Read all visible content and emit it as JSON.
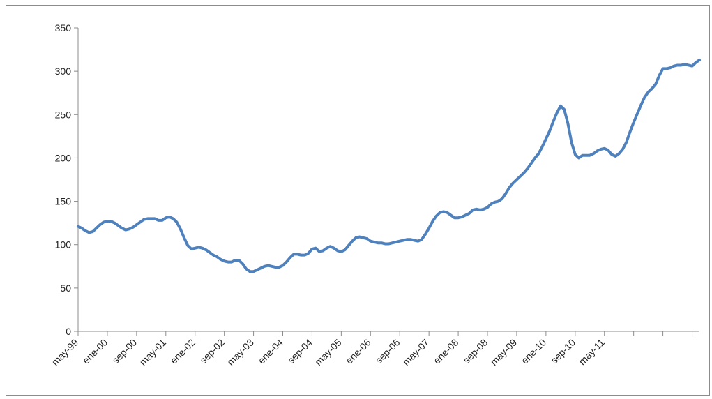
{
  "chart_data": {
    "type": "line",
    "title": "",
    "xlabel": "",
    "ylabel": "",
    "ylim": [
      0,
      350
    ],
    "yticks": [
      0,
      50,
      100,
      150,
      200,
      250,
      300,
      350
    ],
    "x_tick_labels": [
      "may-99",
      "ene-00",
      "sep-00",
      "may-01",
      "ene-02",
      "sep-02",
      "may-03",
      "ene-04",
      "sep-04",
      "may-05",
      "ene-06",
      "sep-06",
      "may-07",
      "ene-08",
      "sep-08",
      "may-09",
      "ene-10",
      "sep-10",
      "may-11"
    ],
    "grid": false,
    "legend": "none",
    "line_color": "#4f81bd",
    "series": [
      {
        "x_start": "may-99",
        "x_interval": "month",
        "values": [
          121,
          119,
          116,
          114,
          115,
          119,
          123,
          126,
          127,
          127,
          125,
          122,
          119,
          117,
          118,
          120,
          123,
          126,
          129,
          130,
          130,
          130,
          128,
          128,
          131,
          132,
          130,
          126,
          118,
          108,
          99,
          95,
          96,
          97,
          96,
          94,
          91,
          88,
          86,
          83,
          81,
          80,
          80,
          82,
          82,
          78,
          72,
          69,
          69,
          71,
          73,
          75,
          76,
          75,
          74,
          74,
          76,
          80,
          85,
          89,
          89,
          88,
          88,
          90,
          95,
          96,
          92,
          93,
          96,
          98,
          96,
          93,
          92,
          94,
          99,
          104,
          108,
          109,
          108,
          107,
          104,
          103,
          102,
          102,
          101,
          101,
          102,
          103,
          104,
          105,
          106,
          106,
          105,
          104,
          106,
          112,
          119,
          127,
          133,
          137,
          138,
          137,
          134,
          131,
          131,
          132,
          134,
          136,
          140,
          141,
          140,
          141,
          143,
          147,
          149,
          150,
          153,
          159,
          166,
          171,
          175,
          179,
          183,
          188,
          194,
          200,
          205,
          213,
          222,
          231,
          242,
          252,
          260,
          256,
          240,
          218,
          204,
          200,
          203,
          203,
          203,
          205,
          208,
          210,
          211,
          209,
          204,
          202,
          205,
          210,
          218,
          230,
          241,
          251,
          261,
          270,
          276,
          280,
          285,
          295,
          303,
          303,
          304,
          306,
          307,
          307,
          308,
          307,
          306,
          310,
          313
        ]
      }
    ]
  }
}
